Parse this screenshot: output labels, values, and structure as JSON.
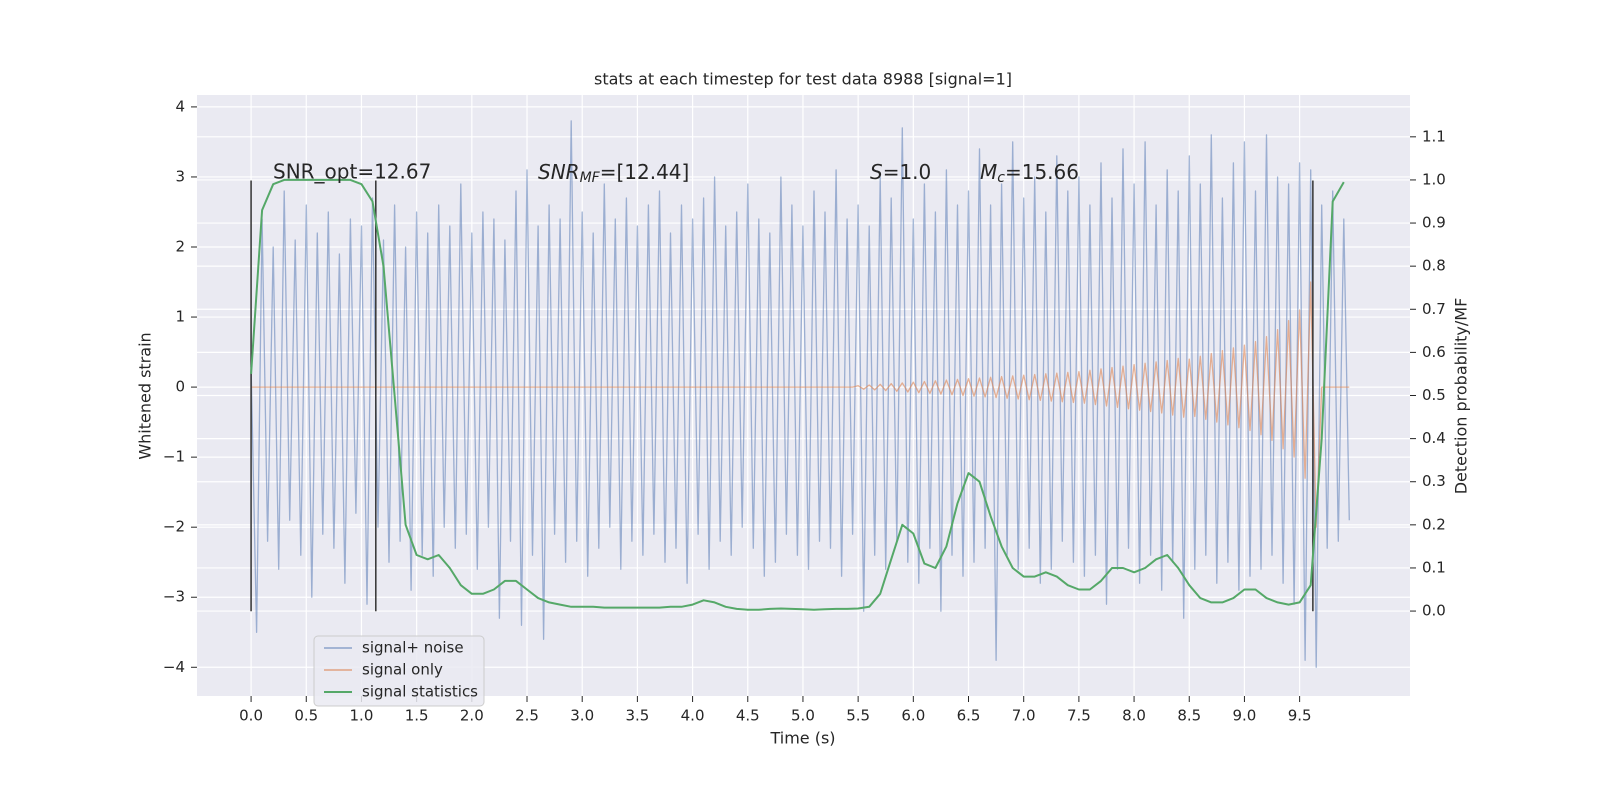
{
  "chart_data": {
    "type": "line",
    "title": "stats at each timestep for test data 8988 [signal=1]",
    "xlabel": "Time (s)",
    "ylabel": "Whitened strain",
    "y2label": "Detection probability/MF",
    "annotations": [
      "SNR_opt=12.67",
      {
        "base": "SNR",
        "sub": "MF",
        "rest": "=[12.44]"
      },
      {
        "base": "S",
        "rest": "=1.0"
      },
      {
        "base": "M",
        "sub": "c",
        "rest": "=15.66"
      }
    ],
    "xlim": [
      -0.49,
      10.5
    ],
    "ylim": [
      -4.41,
      4.17
    ],
    "y2lim": [
      -0.197,
      1.197
    ],
    "xticks": [
      {
        "value": 0,
        "label": "0.0"
      },
      0.5,
      {
        "value": 1,
        "label": "1.0"
      },
      1.5,
      {
        "value": 2,
        "label": "2.0"
      },
      2.5,
      {
        "value": 3,
        "label": "3.0"
      },
      3.5,
      {
        "value": 4,
        "label": "4.0"
      },
      4.5,
      {
        "value": 5,
        "label": "5.0"
      },
      5.5,
      {
        "value": 6,
        "label": "6.0"
      },
      6.5,
      {
        "value": 7,
        "label": "7.0"
      },
      7.5,
      {
        "value": 8,
        "label": "8.0"
      },
      8.5,
      {
        "value": 9,
        "label": "9.0"
      },
      9.5
    ],
    "yticks": [
      {
        "value": -4,
        "label": "−4"
      },
      {
        "value": -3,
        "label": "−3"
      },
      {
        "value": -2,
        "label": "−2"
      },
      {
        "value": -1,
        "label": "−1"
      },
      0,
      1,
      2,
      3,
      4
    ],
    "y2ticks": [
      {
        "value": 0,
        "label": "0.0"
      },
      0.1,
      0.2,
      0.3,
      0.4,
      0.5,
      0.6,
      0.7,
      0.8,
      0.9,
      {
        "value": 1,
        "label": "1.0"
      },
      1.1
    ],
    "grid": true,
    "legend": "lower left",
    "vlines": [
      0,
      1.13,
      9.62
    ],
    "vline_span": [
      -3.2,
      2.95
    ],
    "x": [
      0,
      0.05,
      0.1,
      0.15,
      0.2,
      0.25,
      0.3,
      0.35,
      0.4,
      0.45,
      0.5,
      0.55,
      0.6,
      0.65,
      0.7,
      0.75,
      0.8,
      0.85,
      0.9,
      0.95,
      1,
      1.05,
      1.1,
      1.15,
      1.2,
      1.25,
      1.3,
      1.35,
      1.4,
      1.45,
      1.5,
      1.55,
      1.6,
      1.65,
      1.7,
      1.75,
      1.8,
      1.85,
      1.9,
      1.95,
      2,
      2.05,
      2.1,
      2.15,
      2.2,
      2.25,
      2.3,
      2.35,
      2.4,
      2.45,
      2.5,
      2.55,
      2.6,
      2.65,
      2.7,
      2.75,
      2.8,
      2.85,
      2.9,
      2.95,
      3,
      3.05,
      3.1,
      3.15,
      3.2,
      3.25,
      3.3,
      3.35,
      3.4,
      3.45,
      3.5,
      3.55,
      3.6,
      3.65,
      3.7,
      3.75,
      3.8,
      3.85,
      3.9,
      3.95,
      4,
      4.05,
      4.1,
      4.15,
      4.2,
      4.25,
      4.3,
      4.35,
      4.4,
      4.45,
      4.5,
      4.55,
      4.6,
      4.65,
      4.7,
      4.75,
      4.8,
      4.85,
      4.9,
      4.95,
      5,
      5.05,
      5.1,
      5.15,
      5.2,
      5.25,
      5.3,
      5.35,
      5.4,
      5.45,
      5.5,
      5.55,
      5.6,
      5.65,
      5.7,
      5.75,
      5.8,
      5.85,
      5.9,
      5.95,
      6,
      6.05,
      6.1,
      6.15,
      6.2,
      6.25,
      6.3,
      6.35,
      6.4,
      6.45,
      6.5,
      6.55,
      6.6,
      6.65,
      6.7,
      6.75,
      6.8,
      6.85,
      6.9,
      6.95,
      7,
      7.05,
      7.1,
      7.15,
      7.2,
      7.25,
      7.3,
      7.35,
      7.4,
      7.45,
      7.5,
      7.55,
      7.6,
      7.65,
      7.7,
      7.75,
      7.8,
      7.85,
      7.9,
      7.95,
      8,
      8.05,
      8.1,
      8.15,
      8.2,
      8.25,
      8.3,
      8.35,
      8.4,
      8.45,
      8.5,
      8.55,
      8.6,
      8.65,
      8.7,
      8.75,
      8.8,
      8.85,
      8.9,
      8.95,
      9,
      9.05,
      9.1,
      9.15,
      9.2,
      9.25,
      9.3,
      9.35,
      9.4,
      9.45,
      9.5,
      9.55,
      9.6,
      9.65,
      9.7,
      9.75,
      9.8,
      9.85,
      9.9,
      9.95
    ],
    "series": [
      {
        "name": "signal+ noise",
        "color": "#4c72b0",
        "values": [
          0.3,
          -3.5,
          2.4,
          -2.2,
          2.0,
          -2.6,
          2.8,
          -1.9,
          2.1,
          -2.4,
          2.6,
          -3.0,
          2.2,
          -2.1,
          2.5,
          -2.3,
          1.9,
          -2.8,
          2.4,
          -1.8,
          2.3,
          -3.1,
          2.7,
          -2.0,
          2.1,
          -2.5,
          2.6,
          -2.2,
          2.0,
          -2.9,
          2.5,
          -2.4,
          2.2,
          -2.7,
          2.6,
          -2.0,
          2.3,
          -2.3,
          2.9,
          -2.1,
          2.2,
          -2.6,
          2.5,
          -2.0,
          2.4,
          -3.3,
          2.1,
          -2.2,
          2.8,
          -3.4,
          3.1,
          -2.4,
          2.3,
          -3.6,
          2.6,
          -2.1,
          2.4,
          -2.5,
          3.8,
          -2.2,
          2.5,
          -2.7,
          2.2,
          -2.3,
          2.9,
          -2.0,
          2.4,
          -2.6,
          2.7,
          -2.2,
          2.3,
          -2.4,
          2.6,
          -2.1,
          2.8,
          -2.5,
          2.2,
          -2.3,
          2.6,
          -2.8,
          2.4,
          -2.1,
          2.7,
          -2.6,
          3.0,
          -2.2,
          2.3,
          -2.4,
          2.5,
          -2.0,
          2.9,
          -2.3,
          2.4,
          -2.7,
          2.2,
          -2.5,
          3.0,
          -2.1,
          2.6,
          -2.4,
          2.3,
          -2.6,
          2.8,
          -2.2,
          2.5,
          -2.3,
          3.1,
          -2.7,
          2.4,
          -2.1,
          2.6,
          -3.2,
          2.3,
          -2.4,
          3.0,
          -2.6,
          2.7,
          -2.2,
          3.7,
          -2.5,
          2.4,
          -2.8,
          2.9,
          -2.3,
          2.5,
          -3.2,
          3.1,
          -2.4,
          2.6,
          -2.7,
          2.8,
          -2.5,
          3.4,
          -2.3,
          2.6,
          -3.9,
          2.9,
          -2.4,
          3.5,
          -2.6,
          2.7,
          -2.3,
          3.0,
          -2.8,
          2.5,
          -2.6,
          3.3,
          -2.2,
          2.8,
          -2.5,
          3.0,
          -2.7,
          2.6,
          -2.4,
          3.2,
          -3.1,
          2.7,
          -2.6,
          3.4,
          -2.3,
          2.9,
          -2.8,
          3.5,
          -2.4,
          2.6,
          -2.9,
          3.1,
          -2.5,
          2.8,
          -3.3,
          3.3,
          -2.6,
          2.9,
          -2.4,
          3.6,
          -2.8,
          2.7,
          -2.5,
          3.2,
          -2.9,
          3.5,
          -2.7,
          2.8,
          -2.6,
          3.6,
          -2.4,
          3.0,
          -2.8,
          2.9,
          -3.1,
          3.2,
          -3.9,
          3.1,
          -4.0,
          2.6,
          -2.3,
          2.8,
          -2.2,
          2.4,
          -1.9
        ]
      },
      {
        "name": "signal only",
        "color": "#dd8452",
        "values": [
          0,
          0,
          0,
          0,
          0,
          0,
          0,
          0,
          0,
          0,
          0,
          0,
          0,
          0,
          0,
          0,
          0,
          0,
          0,
          0,
          0,
          0,
          0,
          0,
          0,
          0,
          0,
          0,
          0,
          0,
          0,
          0,
          0,
          0,
          0,
          0,
          0,
          0,
          0,
          0,
          0,
          0,
          0,
          0,
          0,
          0,
          0,
          0,
          0,
          0,
          0,
          0,
          0,
          0,
          0,
          0,
          0,
          0,
          0,
          0,
          0,
          0,
          0,
          0,
          0,
          0,
          0,
          0,
          0,
          0,
          0,
          0,
          0,
          0,
          0,
          0,
          0,
          0,
          0,
          0,
          0,
          0,
          0,
          0,
          0,
          0,
          0,
          0,
          0,
          0,
          0,
          0,
          0,
          0,
          0,
          0,
          0,
          0,
          0,
          0,
          0,
          0,
          0,
          0,
          0,
          0,
          0,
          0,
          0,
          0,
          0.02,
          -0.03,
          0.03,
          -0.04,
          0.04,
          -0.05,
          0.05,
          -0.06,
          0.06,
          -0.07,
          0.07,
          -0.08,
          0.08,
          -0.09,
          0.09,
          -0.1,
          0.1,
          -0.11,
          0.11,
          -0.12,
          0.12,
          -0.13,
          0.13,
          -0.14,
          0.14,
          -0.15,
          0.15,
          -0.16,
          0.16,
          -0.17,
          0.17,
          -0.18,
          0.18,
          -0.19,
          0.19,
          -0.2,
          0.2,
          -0.21,
          0.21,
          -0.22,
          0.22,
          -0.23,
          0.24,
          -0.25,
          0.26,
          -0.27,
          0.28,
          -0.29,
          0.3,
          -0.31,
          0.32,
          -0.33,
          0.34,
          -0.35,
          0.36,
          -0.37,
          0.38,
          -0.4,
          0.41,
          -0.43,
          0.4,
          -0.42,
          0.44,
          -0.46,
          0.48,
          -0.5,
          0.52,
          -0.54,
          0.56,
          -0.58,
          0.6,
          -0.62,
          0.65,
          -0.68,
          0.72,
          -0.76,
          0.82,
          -0.88,
          0.95,
          -1.0,
          1.1,
          -1.3,
          1.5,
          -2.0,
          0,
          0,
          0,
          0,
          0,
          0
        ]
      },
      {
        "name": "signal statistics",
        "color": "#55a868",
        "axis": "y2",
        "x": [
          0,
          0.1,
          0.2,
          0.3,
          0.4,
          0.5,
          0.6,
          0.7,
          0.8,
          0.9,
          1,
          1.1,
          1.2,
          1.3,
          1.4,
          1.5,
          1.6,
          1.7,
          1.8,
          1.9,
          2,
          2.1,
          2.2,
          2.3,
          2.4,
          2.5,
          2.6,
          2.7,
          2.8,
          2.9,
          3,
          3.1,
          3.2,
          3.3,
          3.4,
          3.5,
          3.6,
          3.7,
          3.8,
          3.9,
          4,
          4.1,
          4.2,
          4.3,
          4.4,
          4.5,
          4.6,
          4.7,
          4.8,
          4.9,
          5,
          5.1,
          5.2,
          5.3,
          5.4,
          5.5,
          5.6,
          5.7,
          5.8,
          5.9,
          6,
          6.1,
          6.2,
          6.3,
          6.4,
          6.5,
          6.6,
          6.7,
          6.8,
          6.9,
          7,
          7.1,
          7.2,
          7.3,
          7.4,
          7.5,
          7.6,
          7.7,
          7.8,
          7.9,
          8,
          8.1,
          8.2,
          8.3,
          8.4,
          8.5,
          8.6,
          8.7,
          8.8,
          8.9,
          9,
          9.1,
          9.2,
          9.3,
          9.4,
          9.5,
          9.6,
          9.7,
          9.8,
          9.9
        ],
        "values": [
          0.55,
          0.93,
          0.99,
          1.0,
          1.0,
          1.0,
          1.0,
          1.0,
          1.0,
          1.0,
          0.99,
          0.95,
          0.8,
          0.5,
          0.2,
          0.13,
          0.12,
          0.13,
          0.1,
          0.06,
          0.04,
          0.04,
          0.05,
          0.07,
          0.07,
          0.05,
          0.03,
          0.02,
          0.015,
          0.01,
          0.01,
          0.01,
          0.008,
          0.008,
          0.008,
          0.008,
          0.008,
          0.008,
          0.01,
          0.01,
          0.015,
          0.025,
          0.02,
          0.01,
          0.005,
          0.003,
          0.003,
          0.005,
          0.006,
          0.005,
          0.004,
          0.003,
          0.004,
          0.005,
          0.005,
          0.006,
          0.01,
          0.04,
          0.12,
          0.2,
          0.18,
          0.11,
          0.1,
          0.15,
          0.25,
          0.32,
          0.3,
          0.22,
          0.15,
          0.1,
          0.08,
          0.08,
          0.09,
          0.08,
          0.06,
          0.05,
          0.05,
          0.07,
          0.1,
          0.1,
          0.09,
          0.1,
          0.12,
          0.13,
          0.1,
          0.06,
          0.03,
          0.02,
          0.02,
          0.03,
          0.05,
          0.05,
          0.03,
          0.02,
          0.015,
          0.02,
          0.06,
          0.4,
          0.95,
          0.995
        ]
      }
    ]
  }
}
